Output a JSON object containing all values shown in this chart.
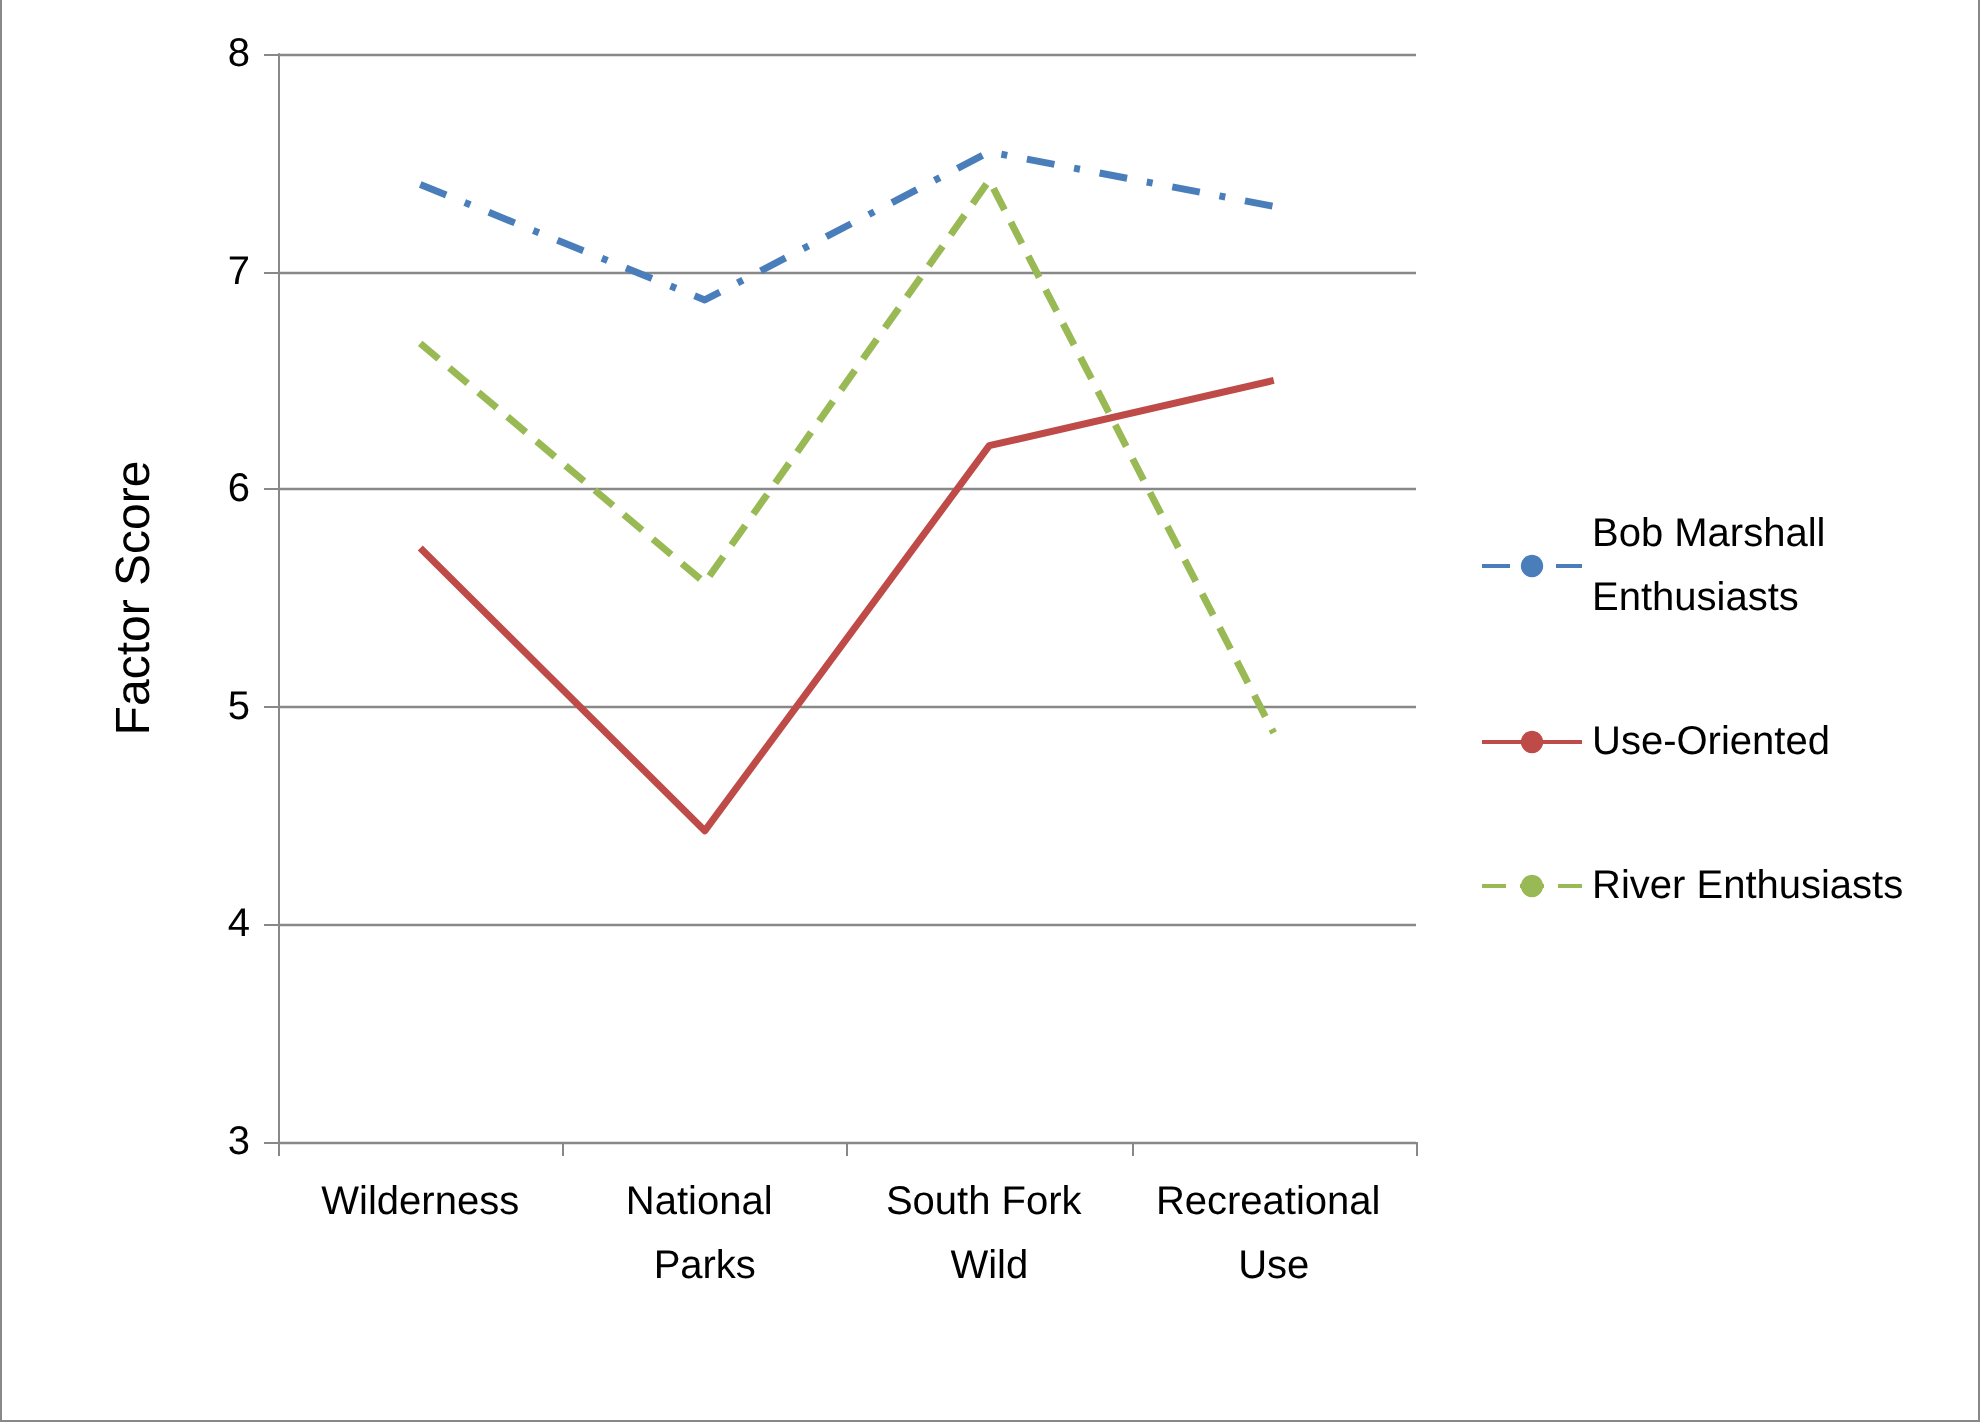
{
  "chart_data": {
    "type": "line",
    "ylabel": "Factor Score",
    "categories": [
      "Wilderness",
      "National Parks",
      "South Fork Wild",
      "Recreational Use"
    ],
    "series": [
      {
        "name": "Bob Marshall Enthusiasts",
        "color": "#4a7ebb",
        "line_style": "dashdot",
        "values": [
          7.4,
          6.87,
          7.55,
          7.3
        ]
      },
      {
        "name": "Use-Oriented",
        "color": "#be4b48",
        "line_style": "solid",
        "values": [
          5.73,
          4.43,
          6.2,
          6.5
        ]
      },
      {
        "name": "River Enthusiasts",
        "color": "#98b954",
        "line_style": "dashed",
        "values": [
          6.67,
          5.57,
          7.42,
          4.88
        ]
      }
    ],
    "ylim": [
      3,
      8
    ],
    "yticks": [
      3,
      4,
      5,
      6,
      7,
      8
    ],
    "grid": "y",
    "legend": "right",
    "marker": "none"
  }
}
